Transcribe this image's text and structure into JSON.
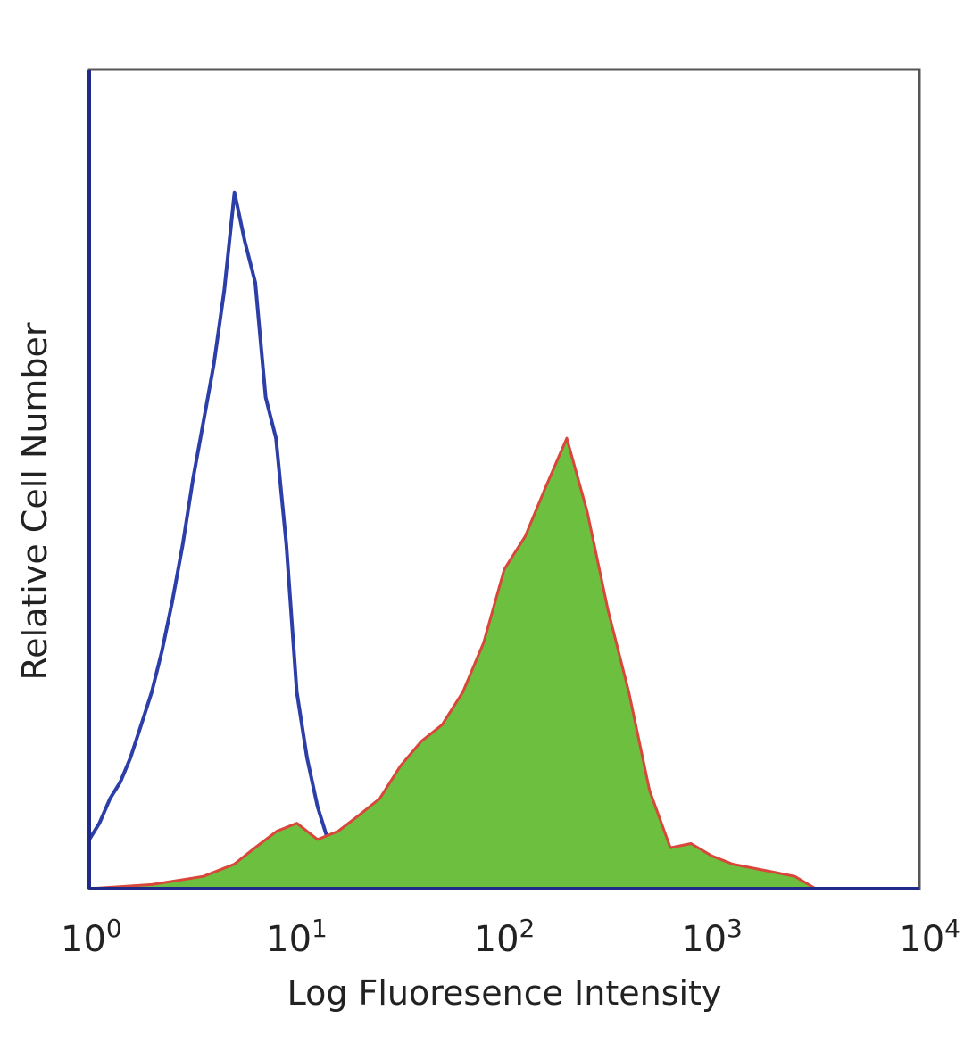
{
  "chart_data": {
    "type": "area",
    "title": "",
    "xlabel": "Log Fluoresence Intensity",
    "ylabel": "Relative Cell Number",
    "x_scale": "log",
    "xlim": [
      1,
      10000
    ],
    "ylim": [
      0,
      100
    ],
    "grid": false,
    "legend": "none",
    "x_ticks": [
      {
        "base": "10",
        "exp": "0",
        "value": 1
      },
      {
        "base": "10",
        "exp": "1",
        "value": 10
      },
      {
        "base": "10",
        "exp": "2",
        "value": 100
      },
      {
        "base": "10",
        "exp": "3",
        "value": 1000
      },
      {
        "base": "10",
        "exp": "4",
        "value": 10000
      }
    ],
    "series": [
      {
        "style": "line",
        "color": "#2c3ea8",
        "x": [
          1.0,
          1.12,
          1.26,
          1.41,
          1.58,
          1.78,
          2.0,
          2.24,
          2.51,
          2.82,
          3.16,
          3.55,
          3.98,
          4.47,
          5.01,
          5.62,
          6.31,
          7.08,
          7.94,
          8.91,
          10.0,
          11.2,
          12.6,
          14.1,
          15.8,
          17.8,
          20.0,
          25.1,
          31.6
        ],
        "y": [
          6,
          8,
          11,
          13,
          16,
          20,
          24,
          29,
          35,
          42,
          50,
          57,
          64,
          73,
          85,
          79,
          74,
          60,
          55,
          42,
          24,
          16,
          10,
          6,
          3,
          1.5,
          2,
          1,
          0
        ]
      },
      {
        "style": "filled",
        "color": "#6cbf3f",
        "edge_color": "#d9463a",
        "x": [
          1.0,
          2.0,
          3.55,
          5.0,
          6.3,
          8.0,
          10.0,
          12.6,
          15.8,
          20.0,
          25.1,
          31.6,
          39.8,
          50.1,
          63.1,
          79.4,
          100,
          126,
          158,
          200,
          251,
          316,
          398,
          501,
          631,
          794,
          1000,
          1260,
          1580,
          2000,
          2510,
          3160
        ],
        "y": [
          0,
          0.5,
          1.5,
          3,
          5,
          7,
          8,
          6,
          7,
          9,
          11,
          15,
          18,
          20,
          24,
          30,
          39,
          43,
          49,
          55,
          46,
          34,
          24,
          12,
          5,
          5.5,
          4,
          3,
          2.5,
          2,
          1.5,
          0
        ]
      }
    ]
  }
}
